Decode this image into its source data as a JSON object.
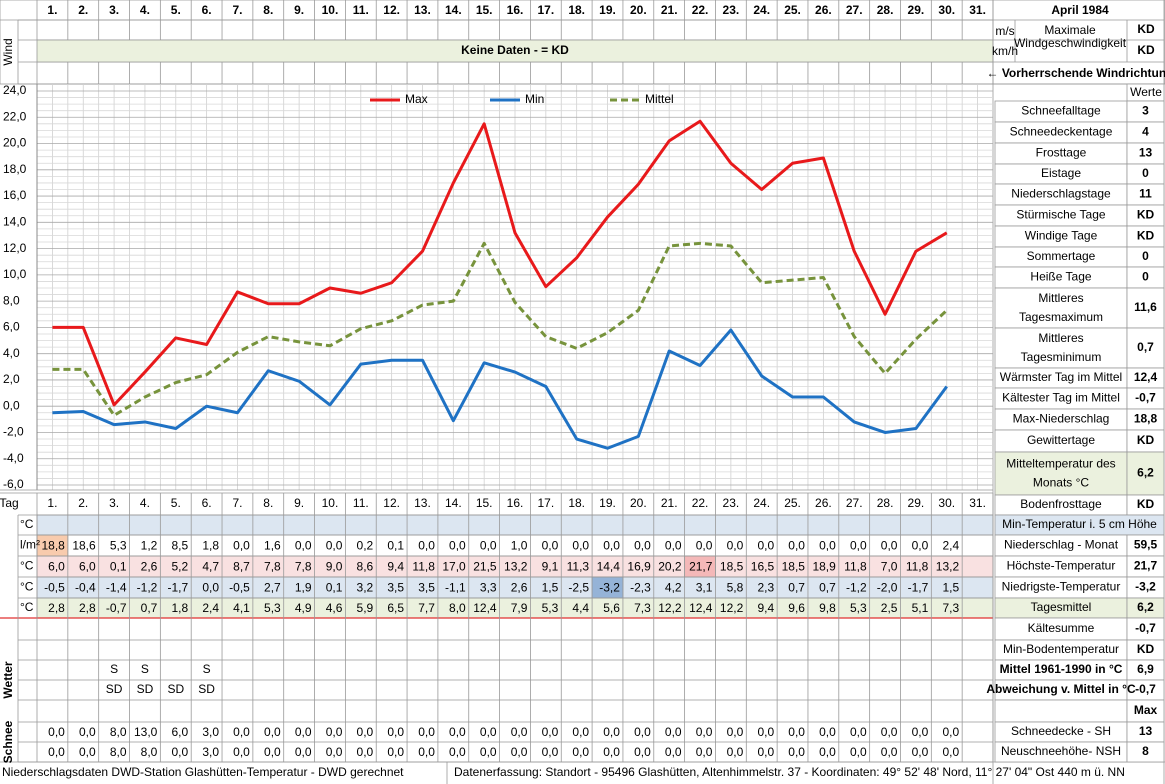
{
  "header": {
    "title": "April 1984",
    "wind_label": "Wind",
    "wind_units": [
      "m/s",
      "km/h"
    ],
    "wind_max_label": "Maximale Windgeschwindigkeit",
    "wind_max_values": [
      "KD",
      "KD"
    ],
    "no_data": "Keine Daten -  = KD",
    "wind_direction": "← Vorherrschende Windrichtung",
    "werte": "Werte"
  },
  "chart_data": {
    "type": "line",
    "categories": [
      "1.",
      "2.",
      "3.",
      "4.",
      "5.",
      "6.",
      "7.",
      "8.",
      "9.",
      "10.",
      "11.",
      "12.",
      "13.",
      "14.",
      "15.",
      "16.",
      "17.",
      "18.",
      "19.",
      "20.",
      "21.",
      "22.",
      "23.",
      "24.",
      "25.",
      "26.",
      "27.",
      "28.",
      "29.",
      "30.",
      "31."
    ],
    "series": [
      {
        "name": "Max",
        "color": "#e8191b",
        "values": [
          6.0,
          6.0,
          0.1,
          2.6,
          5.2,
          4.7,
          8.7,
          7.8,
          7.8,
          9.0,
          8.6,
          9.4,
          11.8,
          17.0,
          21.5,
          13.2,
          9.1,
          11.3,
          14.4,
          16.9,
          20.2,
          21.7,
          18.5,
          16.5,
          18.5,
          18.9,
          11.8,
          7.0,
          11.8,
          13.2,
          null
        ],
        "value_labels": [
          "6,0",
          "6,0",
          "0,1",
          "2,6",
          "5,2",
          "4,7",
          "8,7",
          "7,8",
          "7,8",
          "9,0",
          "8,6",
          "9,4",
          "11,8",
          "17,0",
          "21,5",
          "13,2",
          "9,1",
          "11,3",
          "14,4",
          "16,9",
          "20,2",
          "21,7",
          "18,5",
          "16,5",
          "18,5",
          "18,9",
          "11,8",
          "7,0",
          "11,8",
          "13,2",
          null
        ],
        "row_color": "#f9e1e1",
        "highlight": {
          "index": 21,
          "color": "#f4b8b8"
        }
      },
      {
        "name": "Min",
        "color": "#1f72c4",
        "values": [
          -0.5,
          -0.4,
          -1.4,
          -1.2,
          -1.7,
          0.0,
          -0.5,
          2.7,
          1.9,
          0.1,
          3.2,
          3.5,
          3.5,
          -1.1,
          3.3,
          2.6,
          1.5,
          -2.5,
          -3.2,
          -2.3,
          4.2,
          3.1,
          5.8,
          2.3,
          0.7,
          0.7,
          -1.2,
          -2.0,
          -1.7,
          1.5,
          null
        ],
        "value_labels": [
          "-0,5",
          "-0,4",
          "-1,4",
          "-1,2",
          "-1,7",
          "0,0",
          "-0,5",
          "2,7",
          "1,9",
          "0,1",
          "3,2",
          "3,5",
          "3,5",
          "-1,1",
          "3,3",
          "2,6",
          "1,5",
          "-2,5",
          "-3,2",
          "-2,3",
          "4,2",
          "3,1",
          "5,8",
          "2,3",
          "0,7",
          "0,7",
          "-1,2",
          "-2,0",
          "-1,7",
          "1,5",
          null
        ],
        "row_color": "#dce6f1",
        "highlight": {
          "index": 18,
          "color": "#95b3d7"
        }
      },
      {
        "name": "Mittel",
        "color": "#77933c",
        "dashed": true,
        "values": [
          2.8,
          2.8,
          -0.7,
          0.7,
          1.8,
          2.4,
          4.1,
          5.3,
          4.9,
          4.6,
          5.9,
          6.5,
          7.7,
          8.0,
          12.4,
          7.9,
          5.3,
          4.4,
          5.6,
          7.3,
          12.2,
          12.4,
          12.2,
          9.4,
          9.6,
          9.8,
          5.3,
          2.5,
          5.1,
          7.3,
          null
        ],
        "value_labels": [
          "2,8",
          "2,8",
          "-0,7",
          "0,7",
          "1,8",
          "2,4",
          "4,1",
          "5,3",
          "4,9",
          "4,6",
          "5,9",
          "6,5",
          "7,7",
          "8,0",
          "12,4",
          "7,9",
          "5,3",
          "4,4",
          "5,6",
          "7,3",
          "12,2",
          "12,4",
          "12,2",
          "9,4",
          "9,6",
          "9,8",
          "5,3",
          "2,5",
          "5,1",
          "7,3",
          null
        ],
        "row_color": "#ebf1de"
      }
    ],
    "ylim": [
      -6,
      24
    ],
    "yticks": [
      {
        "value": -6,
        "label": "-6,0"
      },
      {
        "value": -4,
        "label": "-4,0"
      },
      {
        "value": -2,
        "label": "-2,0"
      },
      {
        "value": 0,
        "label": "0,0"
      },
      {
        "value": 2,
        "label": "2,0"
      },
      {
        "value": 4,
        "label": "4,0"
      },
      {
        "value": 6,
        "label": "6,0"
      },
      {
        "value": 8,
        "label": "8,0"
      },
      {
        "value": 10,
        "label": "10,0"
      },
      {
        "value": 12,
        "label": "12,0"
      },
      {
        "value": 14,
        "label": "14,0"
      },
      {
        "value": 16,
        "label": "16,0"
      },
      {
        "value": 18,
        "label": "18,0"
      },
      {
        "value": 20,
        "label": "20,0"
      },
      {
        "value": 22,
        "label": "22,0"
      },
      {
        "value": 24,
        "label": "24,0"
      }
    ],
    "grid": true,
    "legend": "top"
  },
  "table": {
    "tag_label": "Tag",
    "units": [
      "°C",
      "l/m²",
      "°C",
      "°C",
      "°C"
    ],
    "min5_color": "#dce6f1",
    "precip": [
      "18,8",
      "18,6",
      "5,3",
      "1,2",
      "8,5",
      "1,8",
      "0,0",
      "1,6",
      "0,0",
      "0,0",
      "0,2",
      "0,1",
      "0,0",
      "0,0",
      "0,0",
      "1,0",
      "0,0",
      "0,0",
      "0,0",
      "0,0",
      "0,0",
      "0,0",
      "0,0",
      "0,0",
      "0,0",
      "0,0",
      "0,0",
      "0,0",
      "0,0",
      "2,4",
      null
    ],
    "precip_highlight": {
      "index": 0,
      "color": "#f8cbad"
    },
    "wetter_label": "Wetter",
    "wetter_rows": [
      [
        null,
        null,
        "S",
        "S",
        null,
        "S",
        null,
        null,
        null,
        null,
        null,
        null,
        null,
        null,
        null,
        null,
        null,
        null,
        null,
        null,
        null,
        null,
        null,
        null,
        null,
        null,
        null,
        null,
        null,
        null,
        null
      ],
      [
        null,
        null,
        "SD",
        "SD",
        "SD",
        "SD",
        null,
        null,
        null,
        null,
        null,
        null,
        null,
        null,
        null,
        null,
        null,
        null,
        null,
        null,
        null,
        null,
        null,
        null,
        null,
        null,
        null,
        null,
        null,
        null,
        null
      ]
    ],
    "schnee_label": "Schnee",
    "schnee_rows": [
      [
        "0,0",
        "0,0",
        "8,0",
        "13,0",
        "6,0",
        "3,0",
        "0,0",
        "0,0",
        "0,0",
        "0,0",
        "0,0",
        "0,0",
        "0,0",
        "0,0",
        "0,0",
        "0,0",
        "0,0",
        "0,0",
        "0,0",
        "0,0",
        "0,0",
        "0,0",
        "0,0",
        "0,0",
        "0,0",
        "0,0",
        "0,0",
        "0,0",
        "0,0",
        "0,0",
        null
      ],
      [
        "0,0",
        "0,0",
        "8,0",
        "8,0",
        "0,0",
        "3,0",
        "0,0",
        "0,0",
        "0,0",
        "0,0",
        "0,0",
        "0,0",
        "0,0",
        "0,0",
        "0,0",
        "0,0",
        "0,0",
        "0,0",
        "0,0",
        "0,0",
        "0,0",
        "0,0",
        "0,0",
        "0,0",
        "0,0",
        "0,0",
        "0,0",
        "0,0",
        "0,0",
        "0,0",
        null
      ]
    ]
  },
  "stats": [
    {
      "label": "Schneefalltage",
      "value": "3"
    },
    {
      "label": "Schneedeckentage",
      "value": "4"
    },
    {
      "label": "Frosttage",
      "value": "13"
    },
    {
      "label": "Eistage",
      "value": "0"
    },
    {
      "label": "Niederschlagstage",
      "value": "11"
    },
    {
      "label": "Stürmische Tage",
      "value": "KD"
    },
    {
      "label": "Windige Tage",
      "value": "KD"
    },
    {
      "label": "Sommertage",
      "value": "0"
    },
    {
      "label": "Heiße Tage",
      "value": "0"
    },
    {
      "label": "Mittleres Tagesmaximum",
      "value": "11,6"
    },
    {
      "label": "Mittleres Tagesminimum",
      "value": "0,7"
    },
    {
      "label": "Wärmster Tag im Mittel",
      "value": "12,4"
    },
    {
      "label": "Kältester Tag im Mittel",
      "value": "-0,7"
    },
    {
      "label": "Max-Niederschlag",
      "value": "18,8"
    },
    {
      "label": "Gewittertage",
      "value": "KD"
    },
    {
      "label": "Mitteltemperatur des Monats °C",
      "value": "6,2",
      "bg": "#ebf1de"
    },
    {
      "label": "Bodenfrosttage",
      "value": "KD"
    }
  ],
  "summary": [
    {
      "label": "Min-Temperatur i. 5 cm Höhe",
      "bg": "#dce6f1"
    },
    {
      "label": "Niederschlag - Monat",
      "value": "59,5"
    },
    {
      "label": "Höchste-Temperatur",
      "value": "21,7"
    },
    {
      "label": "Niedrigste-Temperatur",
      "value": "-3,2"
    },
    {
      "label": "Tagesmittel",
      "value": "6,2",
      "bg": "#ebf1de"
    },
    {
      "label": "Kältesumme",
      "value": "-0,7"
    },
    {
      "label": "Min-Bodentemperatur",
      "value": "KD"
    },
    {
      "label": "Mittel 1961-1990 in °C",
      "value": "6,9",
      "bold": true
    },
    {
      "label": "Abweichung v. Mittel in °C",
      "value": "-0,7",
      "bold": true,
      "color": "#e00000"
    },
    {
      "value": "Max"
    },
    {
      "label": "Schneedecke -  SH",
      "value": "13"
    },
    {
      "label": "Neuschneehöhe- NSH",
      "value": "8"
    }
  ],
  "footer": {
    "left": "Niederschlagsdaten DWD-Station Glashütten-Temperatur -  DWD gerechnet",
    "right": "Datenerfassung: Standort -  95496 Glashütten, Altenhimmelstr. 37 - Koordinaten: 49° 52' 48' Nord,  11° 27' 04\" Ost  440 m ü. NN"
  }
}
